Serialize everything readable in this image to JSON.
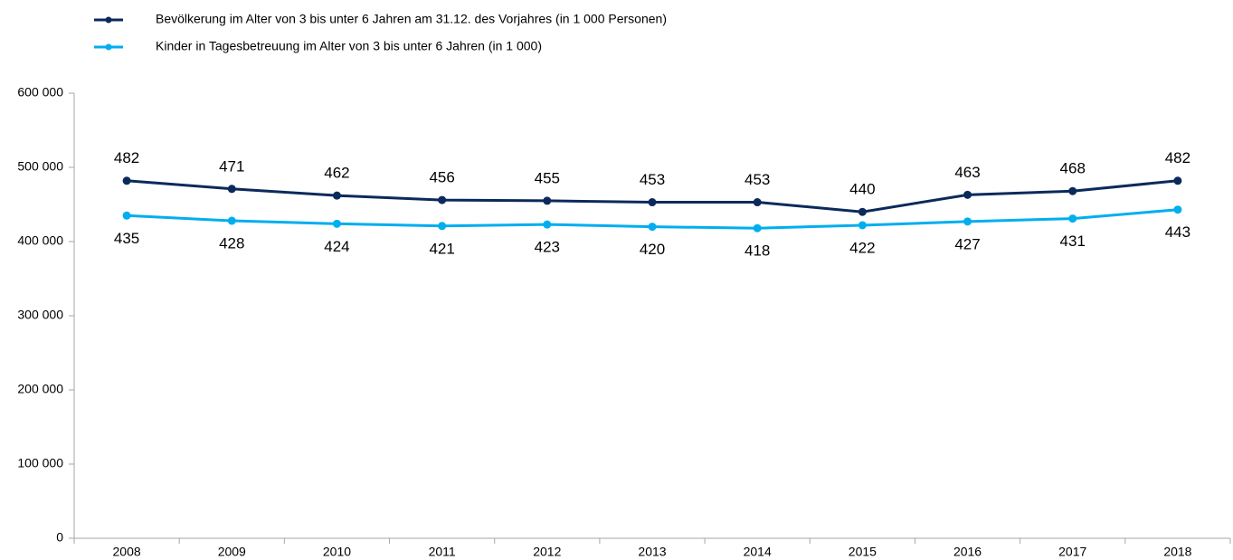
{
  "chart_data": {
    "type": "line",
    "categories": [
      "2008",
      "2009",
      "2010",
      "2011",
      "2012",
      "2013",
      "2014",
      "2015",
      "2016",
      "2017",
      "2018"
    ],
    "series": [
      {
        "name": "Bevölkerung im Alter von 3 bis unter 6 Jahren am 31.12. des Vorjahres (in 1 000 Personen)",
        "color": "#0b2a5b",
        "values": [
          482000,
          471000,
          462000,
          456000,
          455000,
          453000,
          453000,
          440000,
          463000,
          468000,
          482000
        ],
        "value_labels": [
          "482",
          "471",
          "462",
          "456",
          "455",
          "453",
          "453",
          "440",
          "463",
          "468",
          "482"
        ]
      },
      {
        "name": "Kinder in Tagesbetreuung im Alter von 3 bis unter 6 Jahren (in 1 000)",
        "color": "#00aeef",
        "values": [
          435000,
          428000,
          424000,
          421000,
          423000,
          420000,
          418000,
          422000,
          427000,
          431000,
          443000
        ],
        "value_labels": [
          "435",
          "428",
          "424",
          "421",
          "423",
          "420",
          "418",
          "422",
          "427",
          "431",
          "443"
        ]
      }
    ],
    "ylim": [
      0,
      600000
    ],
    "yticks": [
      0,
      {
        "value": 100000,
        "label": "100 000"
      },
      {
        "value": 200000,
        "label": "200 000"
      },
      {
        "value": 300000,
        "label": "300 000"
      },
      {
        "value": 400000,
        "label": "400 000"
      },
      {
        "value": 500000,
        "label": "500 000"
      },
      {
        "value": 600000,
        "label": "600 000"
      }
    ]
  }
}
